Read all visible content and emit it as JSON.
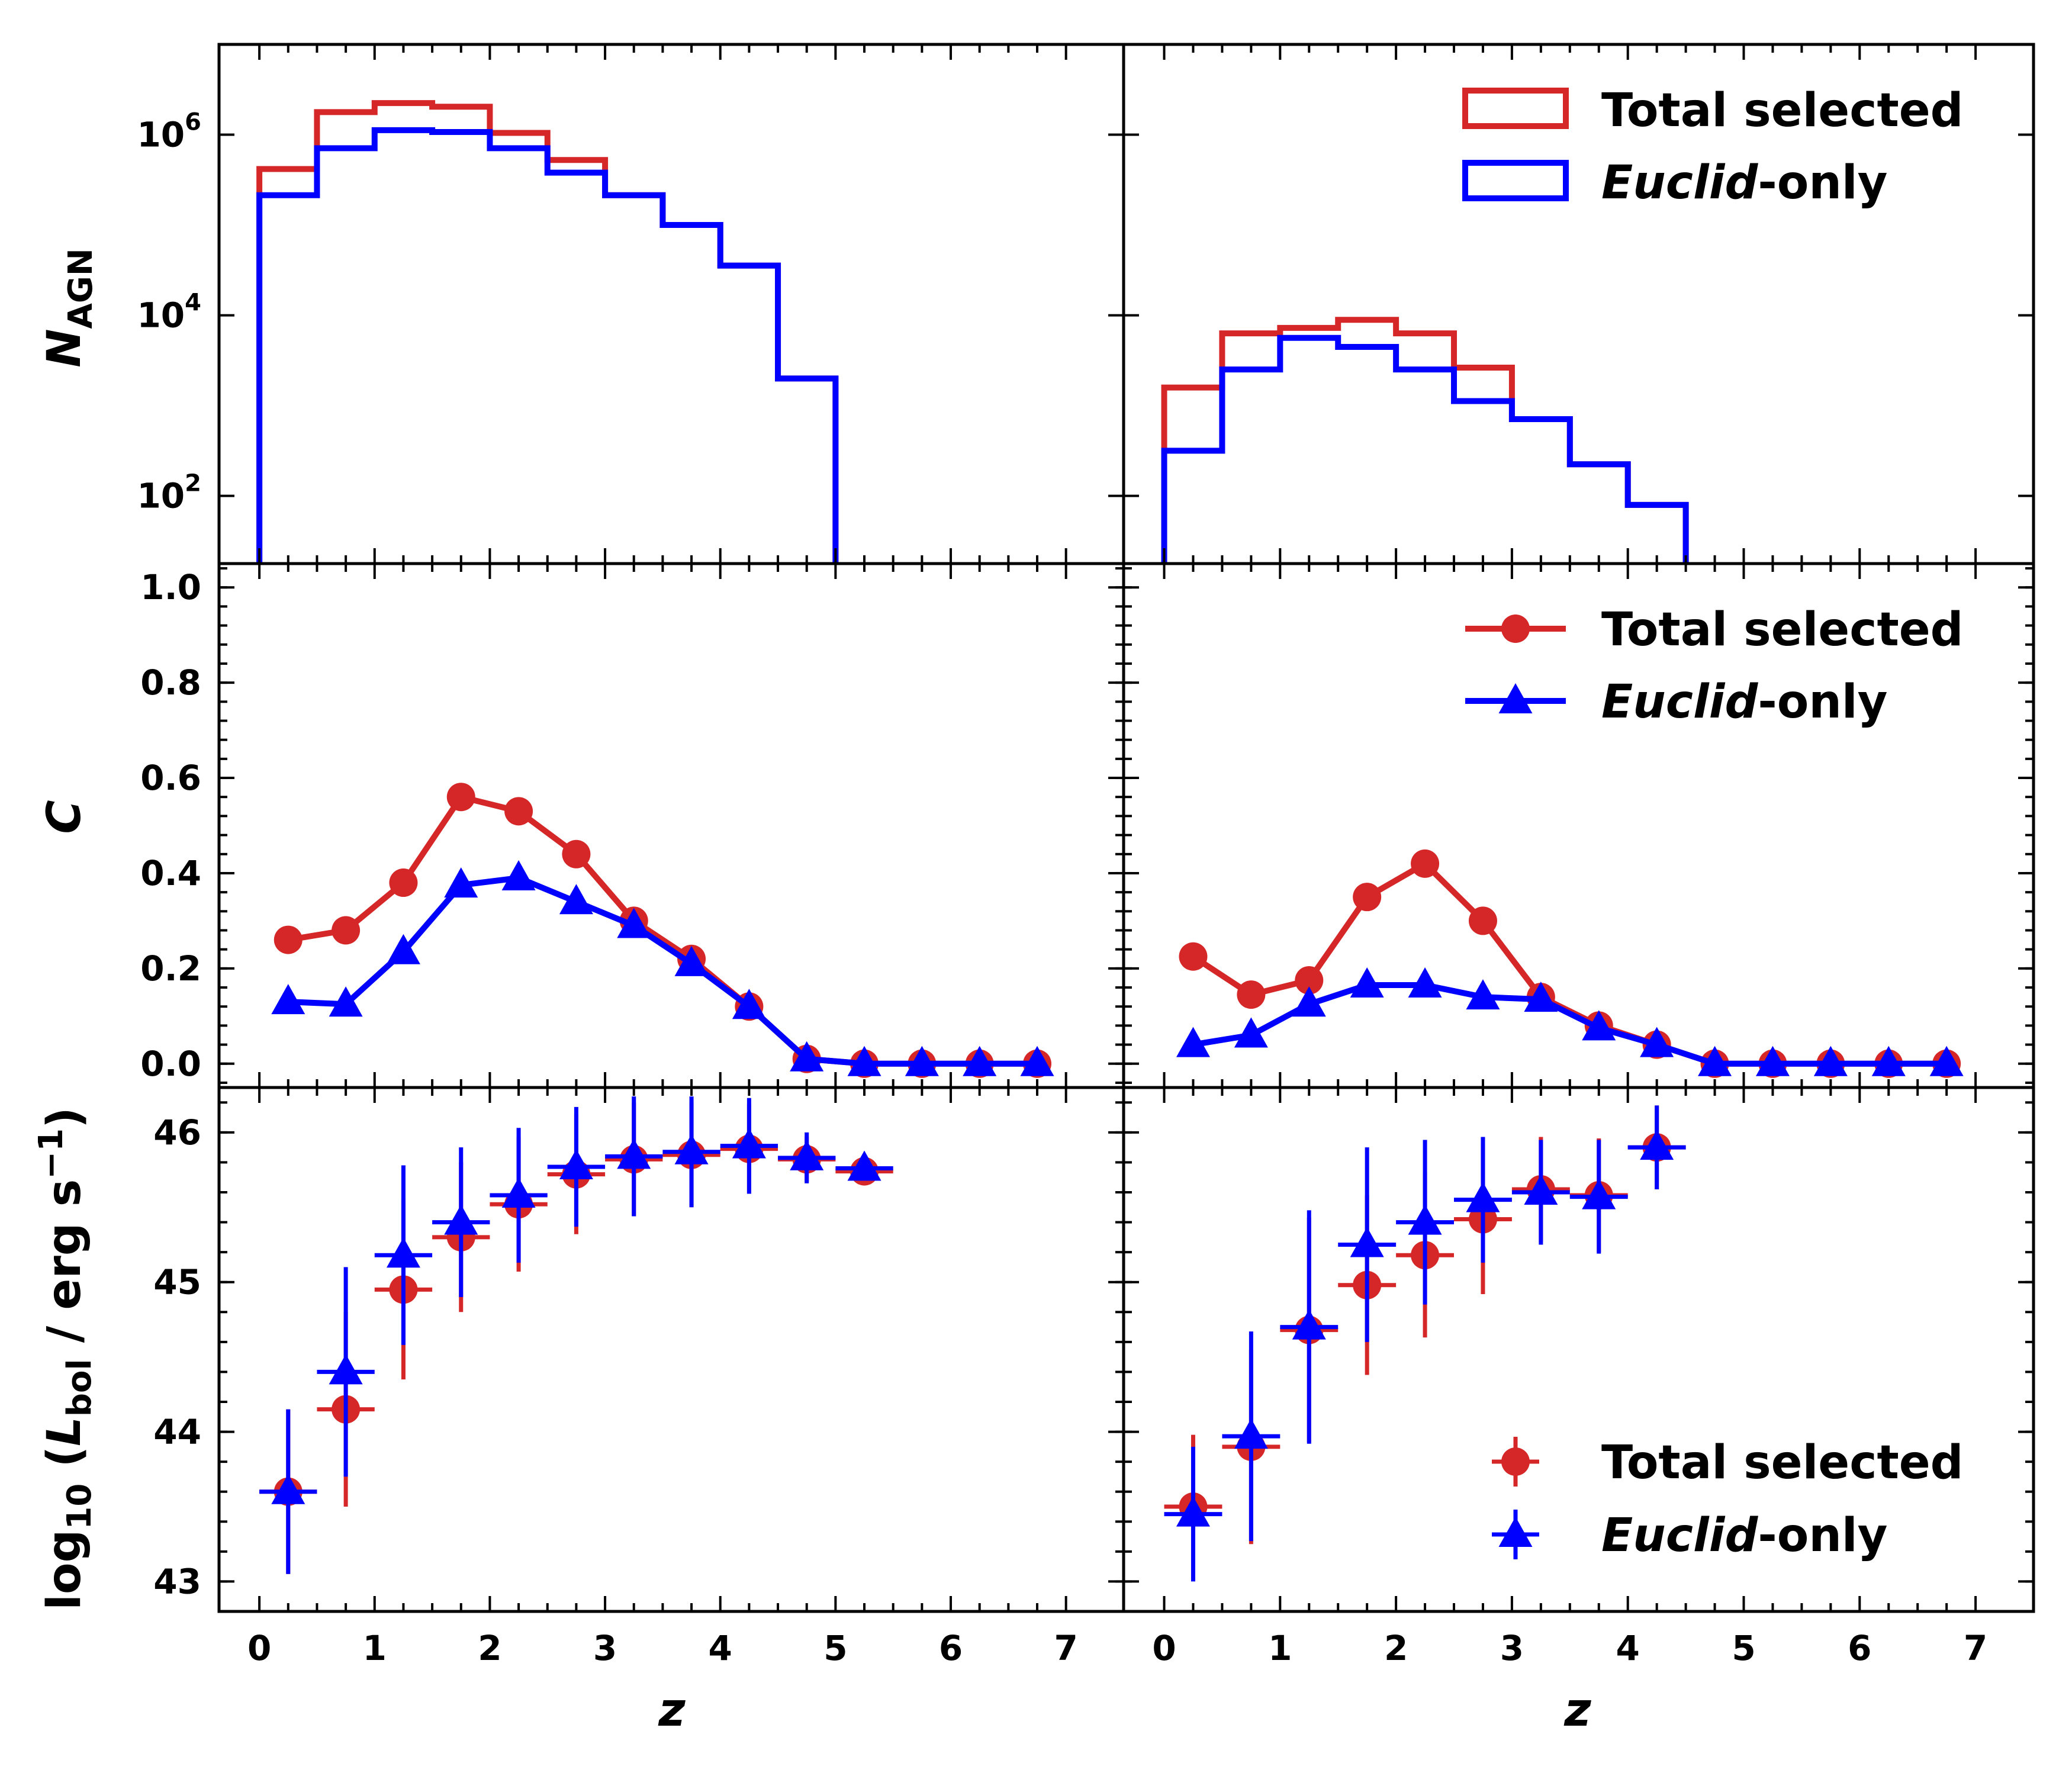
{
  "colors": {
    "total": "#d62728",
    "euclid": "#0000ff",
    "axes": "#000000"
  },
  "legend": {
    "total_label": "Total selected",
    "euclid_label_italic": "Euclid",
    "euclid_label_rest": "-only"
  },
  "axes_text": {
    "x_label": "z",
    "y_top_label_main": "N",
    "y_top_label_sub": "AGN",
    "y_mid_label": "C",
    "y_bot_label_pre": "log",
    "y_bot_label_sub10": "10",
    "y_bot_label_L": "L",
    "y_bot_label_subbol": "bol",
    "y_bot_label_units": " / erg s",
    "y_bot_label_exp": "−1"
  },
  "ticks": {
    "x": [
      "0",
      "1",
      "2",
      "3",
      "4",
      "5",
      "6",
      "7"
    ],
    "top_y": [
      {
        "base": "10",
        "exp": "2"
      },
      {
        "base": "10",
        "exp": "4"
      },
      {
        "base": "10",
        "exp": "6"
      }
    ],
    "mid_y": [
      "0.0",
      "0.2",
      "0.4",
      "0.6",
      "0.8",
      "1.0"
    ],
    "bot_y": [
      "43",
      "44",
      "45",
      "46"
    ]
  },
  "chart_data": [
    {
      "type": "histogram",
      "panel": "top-left",
      "xlim": [
        -0.35,
        7.5
      ],
      "ylim_log10": [
        1.25,
        7.0
      ],
      "y_scale": "log",
      "bin_edges": [
        0,
        0.5,
        1,
        1.5,
        2,
        2.5,
        3,
        3.5,
        4,
        4.5,
        5
      ],
      "series": [
        {
          "name": "Total selected",
          "log10_counts": [
            5.62,
            6.25,
            6.35,
            6.31,
            6.02,
            5.72,
            5.33,
            5.0,
            4.55,
            3.3
          ]
        },
        {
          "name": "Euclid-only",
          "log10_counts": [
            5.33,
            5.85,
            6.05,
            6.03,
            5.85,
            5.58,
            5.33,
            5.0,
            4.55,
            3.3
          ]
        }
      ],
      "legend_placement": "top-right"
    },
    {
      "type": "histogram",
      "panel": "top-right",
      "xlim": [
        -0.35,
        7.5
      ],
      "ylim_log10": [
        1.25,
        7.0
      ],
      "y_scale": "log",
      "bin_edges": [
        0,
        0.5,
        1,
        1.5,
        2,
        2.5,
        3,
        3.5,
        4,
        4.5
      ],
      "series": [
        {
          "name": "Total selected",
          "log10_counts": [
            3.2,
            3.8,
            3.86,
            3.95,
            3.8,
            3.42,
            2.85,
            2.35,
            1.9
          ]
        },
        {
          "name": "Euclid-only",
          "log10_counts": [
            2.5,
            3.4,
            3.75,
            3.65,
            3.4,
            3.05,
            2.85,
            2.35,
            1.9
          ]
        }
      ],
      "legend_placement": "top-right"
    },
    {
      "type": "line",
      "panel": "middle-left",
      "xlim": [
        -0.35,
        7.5
      ],
      "ylim": [
        -0.05,
        1.05
      ],
      "x": [
        0.25,
        0.75,
        1.25,
        1.75,
        2.25,
        2.75,
        3.25,
        3.75,
        4.25,
        4.75,
        5.25,
        5.75,
        6.25,
        6.75
      ],
      "series": [
        {
          "name": "Total selected",
          "marker": "circle",
          "values": [
            0.26,
            0.28,
            0.38,
            0.56,
            0.53,
            0.44,
            0.3,
            0.22,
            0.12,
            0.01,
            0.0,
            0.0,
            0.0,
            0.0
          ]
        },
        {
          "name": "Euclid-only",
          "marker": "triangle",
          "values": [
            0.13,
            0.125,
            0.235,
            0.375,
            0.39,
            0.34,
            0.29,
            0.21,
            0.12,
            0.01,
            0.0,
            0.0,
            0.0,
            0.0
          ]
        }
      ],
      "legend_placement": "top-right"
    },
    {
      "type": "line",
      "panel": "middle-right",
      "xlim": [
        -0.35,
        7.5
      ],
      "ylim": [
        -0.05,
        1.05
      ],
      "x": [
        0.25,
        0.75,
        1.25,
        1.75,
        2.25,
        2.75,
        3.25,
        3.75,
        4.25,
        4.75,
        5.25,
        5.75,
        6.25,
        6.75
      ],
      "series": [
        {
          "name": "Total selected",
          "marker": "circle",
          "values": [
            0.225,
            0.145,
            0.175,
            0.35,
            0.42,
            0.3,
            0.14,
            0.08,
            0.04,
            0.0,
            0.0,
            0.0,
            0.0,
            0.0
          ]
        },
        {
          "name": "Euclid-only",
          "marker": "triangle",
          "values": [
            0.04,
            0.06,
            0.125,
            0.165,
            0.165,
            0.14,
            0.135,
            0.075,
            0.04,
            0.0,
            0.0,
            0.0,
            0.0,
            0.0
          ]
        }
      ],
      "legend_placement": "top-right"
    },
    {
      "type": "errorbar",
      "panel": "bottom-left",
      "xlim": [
        -0.35,
        7.5
      ],
      "ylim": [
        42.8,
        46.3
      ],
      "x": [
        0.25,
        0.75,
        1.25,
        1.75,
        2.25,
        2.75,
        3.25,
        3.75,
        4.25,
        4.75,
        5.25
      ],
      "x_halfwidth": 0.25,
      "series": [
        {
          "name": "Total selected",
          "marker": "circle",
          "values": [
            43.6,
            44.15,
            44.95,
            45.3,
            45.52,
            45.72,
            45.82,
            45.85,
            45.89,
            45.82,
            45.74
          ],
          "err_low": [
            0.55,
            0.65,
            0.6,
            0.5,
            0.45,
            0.4,
            0.38,
            0.35,
            0.3,
            0.15,
            0.04
          ],
          "err_high": [
            0.55,
            0.65,
            0.6,
            0.5,
            0.45,
            0.4,
            0.38,
            0.35,
            0.3,
            0.15,
            0.04
          ]
        },
        {
          "name": "Euclid-only",
          "marker": "triangle",
          "values": [
            43.6,
            44.4,
            45.18,
            45.4,
            45.58,
            45.77,
            45.84,
            45.87,
            45.91,
            45.83,
            45.76
          ],
          "err_low": [
            0.55,
            0.7,
            0.6,
            0.5,
            0.45,
            0.4,
            0.4,
            0.37,
            0.32,
            0.17,
            0.05
          ],
          "err_high": [
            0.55,
            0.7,
            0.6,
            0.5,
            0.45,
            0.4,
            0.4,
            0.37,
            0.32,
            0.17,
            0.05
          ]
        }
      ],
      "legend_placement": "lower-right"
    },
    {
      "type": "errorbar",
      "panel": "bottom-right",
      "xlim": [
        -0.35,
        7.5
      ],
      "ylim": [
        42.8,
        46.3
      ],
      "x": [
        0.25,
        0.75,
        1.25,
        1.75,
        2.25,
        2.75,
        3.25,
        3.75,
        4.25
      ],
      "x_halfwidth": 0.25,
      "series": [
        {
          "name": "Total selected",
          "marker": "circle",
          "values": [
            43.5,
            43.9,
            44.68,
            44.98,
            45.18,
            45.42,
            45.62,
            45.58,
            45.9
          ],
          "err_low": [
            0.48,
            0.65,
            0.75,
            0.6,
            0.55,
            0.5,
            0.35,
            0.38,
            0.28
          ],
          "err_high": [
            0.48,
            0.65,
            0.75,
            0.6,
            0.55,
            0.5,
            0.35,
            0.38,
            0.28
          ]
        },
        {
          "name": "Euclid-only",
          "marker": "triangle",
          "values": [
            43.45,
            43.97,
            44.7,
            45.25,
            45.4,
            45.55,
            45.6,
            45.57,
            45.9
          ],
          "err_low": [
            0.45,
            0.7,
            0.78,
            0.65,
            0.55,
            0.42,
            0.35,
            0.38,
            0.28
          ],
          "err_high": [
            0.45,
            0.7,
            0.78,
            0.65,
            0.55,
            0.42,
            0.35,
            0.38,
            0.28
          ]
        }
      ],
      "legend_placement": "lower-right"
    }
  ]
}
